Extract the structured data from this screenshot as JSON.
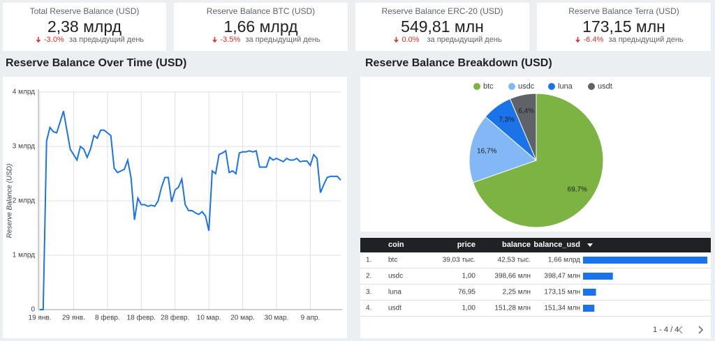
{
  "kpis": [
    {
      "label": "Total Reserve Balance (USD)",
      "value": "2,38 млрд",
      "delta": "-3.0%",
      "delta_text": "за предыдущий день"
    },
    {
      "label": "Reserve Balance BTC (USD)",
      "value": "1,66 млрд",
      "delta": "-3.5%",
      "delta_text": "за предыдущий день"
    },
    {
      "label": "Reserve Balance ERC-20 (USD)",
      "value": "549,81 млн",
      "delta": "0.0%",
      "delta_text": "за предыдущий день"
    },
    {
      "label": "Reserve Balance Terra (USD)",
      "value": "173,15 млн",
      "delta": "-6.4%",
      "delta_text": "за предыдущий день"
    }
  ],
  "chart_data": [
    {
      "type": "line",
      "title": "Reserve Balance Over Time (USD)",
      "y_label": "Reserve Balance (USD)",
      "color": "#1a73e8",
      "grid": true,
      "categories": [
        "19 янв.",
        null,
        null,
        null,
        null,
        null,
        null,
        null,
        null,
        null,
        "29 янв.",
        null,
        null,
        null,
        null,
        null,
        null,
        null,
        null,
        null,
        "8 февр.",
        null,
        null,
        null,
        null,
        null,
        null,
        null,
        null,
        null,
        "18 февр.",
        null,
        null,
        null,
        null,
        null,
        null,
        null,
        null,
        null,
        "28 февр.",
        null,
        null,
        null,
        null,
        null,
        null,
        null,
        null,
        null,
        "10 мар.",
        null,
        null,
        null,
        null,
        null,
        null,
        null,
        null,
        null,
        "20 мар.",
        null,
        null,
        null,
        null,
        null,
        null,
        null,
        null,
        null,
        "30 мар.",
        null,
        null,
        null,
        null,
        null,
        null,
        null,
        null,
        null,
        "9 апр.",
        null,
        null,
        null,
        null,
        null,
        null,
        null,
        null,
        null
      ],
      "values": [
        0,
        0,
        3.1,
        3.35,
        3.27,
        3.25,
        3.45,
        3.65,
        3.3,
        2.95,
        2.85,
        2.75,
        3.0,
        2.95,
        2.8,
        2.95,
        3.2,
        3.15,
        3.3,
        3.3,
        3.25,
        3.2,
        2.6,
        2.52,
        2.55,
        2.58,
        2.75,
        2.42,
        1.65,
        2.05,
        1.93,
        1.93,
        1.9,
        1.92,
        1.9,
        2.0,
        2.25,
        2.43,
        2.43,
        1.98,
        2.2,
        2.25,
        2.4,
        1.93,
        1.82,
        1.82,
        1.78,
        1.75,
        1.8,
        1.72,
        1.45,
        2.55,
        2.5,
        2.85,
        2.88,
        2.92,
        2.52,
        2.55,
        2.5,
        2.88,
        2.9,
        2.9,
        2.92,
        2.9,
        2.92,
        2.62,
        2.62,
        2.62,
        2.8,
        2.75,
        2.78,
        2.75,
        2.72,
        2.78,
        2.75,
        2.75,
        2.78,
        2.72,
        2.73,
        2.73,
        2.65,
        2.85,
        2.78,
        2.15,
        2.3,
        2.43,
        2.45,
        2.45,
        2.45,
        2.38
      ],
      "ylim": [
        0,
        4
      ],
      "yticks": [
        0,
        {
          "value": 1,
          "label": "1 млрд"
        },
        {
          "value": 2,
          "label": "2 млрд"
        },
        {
          "value": 3,
          "label": "3 млрд"
        },
        {
          "value": 4,
          "label": "4 млрд"
        }
      ]
    },
    {
      "type": "pie",
      "title": "Reserve Balance Breakdown (USD)",
      "legend": "top",
      "categories": [
        "btc",
        "usdc",
        "luna",
        "usdt"
      ],
      "values": [
        69.7,
        16.7,
        7.3,
        6.4
      ],
      "value_labels": [
        "69,7%",
        "16,7%",
        "7,3%",
        "6,4%"
      ],
      "colors": [
        "#7cb342",
        "#82b8f5",
        "#1a73e8",
        "#5f6368"
      ]
    }
  ],
  "table": {
    "columns": [
      "coin",
      "price",
      "balance",
      "balance_usd"
    ],
    "rows": [
      [
        "1.",
        "btc",
        "39,03 тыс.",
        "42,53 тыс.",
        "1,66 млрд"
      ],
      [
        "2.",
        "usdc",
        "1,00",
        "398,66 млн",
        "398,47 млн"
      ],
      [
        "3.",
        "luna",
        "76,95",
        "2,25 млн",
        "173,15 млн"
      ],
      [
        "4.",
        "usdt",
        "1,00",
        "151,28 млн",
        "151,34 млн"
      ]
    ],
    "bars": [
      1660,
      398.47,
      173.15,
      151.34
    ],
    "bar_color": "#1a73e8",
    "pagination": "1 - 4 / 4"
  }
}
